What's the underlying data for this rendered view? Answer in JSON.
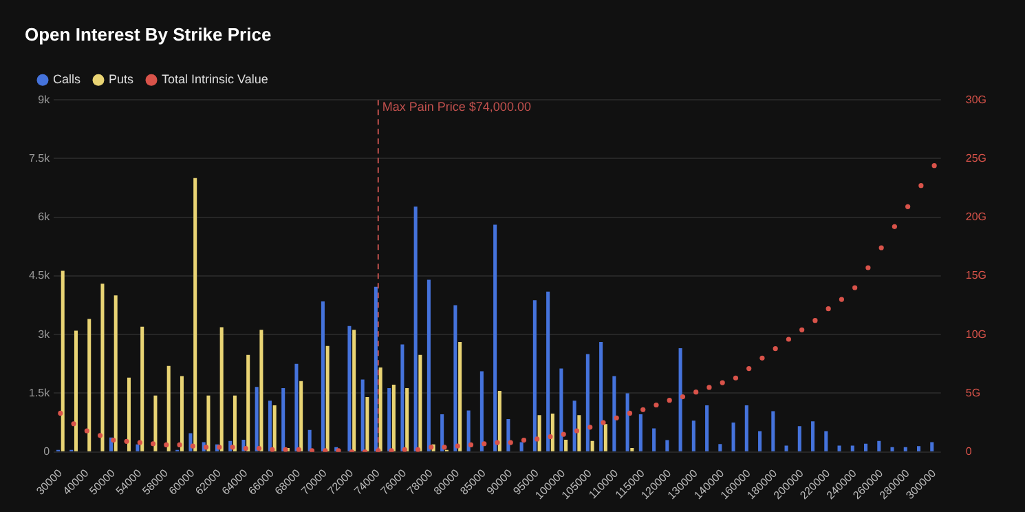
{
  "chart_data": {
    "type": "bar",
    "title": "Open Interest By Strike Price",
    "categories": [
      "30000",
      null,
      "40000",
      null,
      "50000",
      null,
      "54000",
      null,
      "58000",
      null,
      "60000",
      null,
      "62000",
      null,
      "64000",
      null,
      "66000",
      null,
      "68000",
      null,
      "70000",
      null,
      "72000",
      null,
      "74000",
      null,
      "76000",
      null,
      "78000",
      null,
      "80000",
      null,
      "85000",
      null,
      "90000",
      null,
      "95000",
      null,
      "100000",
      null,
      "105000",
      null,
      "110000",
      null,
      "115000",
      null,
      "120000",
      null,
      "130000",
      null,
      "140000",
      null,
      "160000",
      null,
      "180000",
      null,
      "200000",
      null,
      "220000",
      null,
      "240000",
      null,
      "260000",
      null,
      "280000",
      null,
      "300000"
    ],
    "series": [
      {
        "name": "Calls",
        "color": "#4573dc",
        "values": [
          50,
          50,
          0,
          null,
          370,
          0,
          190,
          null,
          0,
          50,
          480,
          250,
          190,
          280,
          310,
          1660,
          1310,
          1630,
          2250,
          560,
          3850,
          120,
          3220,
          1850,
          4220,
          1630,
          2750,
          6270,
          4400,
          960,
          3750,
          1060,
          2060,
          5810,
          840,
          250,
          3880,
          4100,
          2130,
          1310,
          2500,
          2810,
          1940,
          1500,
          960,
          600,
          300,
          2650,
          800,
          1190,
          200,
          750,
          1190,
          530,
          1040,
          160,
          660,
          780,
          530,
          160,
          160,
          210,
          280,
          120,
          120,
          150,
          250
        ]
      },
      {
        "name": "Puts",
        "color": "#e9d474",
        "values": [
          4630,
          3100,
          3400,
          4300,
          4000,
          1900,
          3200,
          1440,
          2200,
          1940,
          7000,
          1440,
          3190,
          1440,
          2480,
          3120,
          1190,
          100,
          1810,
          null,
          2710,
          0,
          3120,
          1400,
          2160,
          1720,
          1630,
          2480,
          190,
          50,
          2810,
          0,
          0,
          1560,
          0,
          0,
          940,
          980,
          310,
          940,
          280,
          710,
          null,
          100,
          0,
          0,
          0,
          0,
          0,
          0,
          0,
          0,
          0,
          0,
          0,
          0,
          0,
          0,
          0,
          0,
          0,
          0,
          0,
          0,
          0,
          0,
          0
        ]
      },
      {
        "name": "Total Intrinsic Value",
        "type": "scatter",
        "axis": "y2",
        "marker": "circle",
        "color": "#d9534a",
        "values": [
          3.3,
          2.4,
          1.8,
          1.4,
          1.0,
          0.9,
          0.8,
          0.7,
          0.6,
          0.6,
          0.5,
          0.4,
          0.4,
          0.4,
          0.3,
          0.3,
          0.2,
          0.2,
          0.2,
          0.1,
          0.1,
          0.1,
          0.0,
          0.0,
          0.1,
          0.1,
          0.2,
          0.2,
          0.4,
          0.4,
          0.5,
          0.6,
          0.7,
          0.8,
          0.8,
          1.0,
          1.1,
          1.3,
          1.5,
          1.8,
          2.1,
          2.5,
          2.9,
          3.3,
          3.6,
          4.0,
          4.4,
          4.7,
          5.1,
          5.5,
          5.9,
          6.3,
          7.1,
          8.0,
          8.8,
          9.6,
          10.4,
          11.2,
          12.2,
          13.0,
          14.0,
          15.7,
          17.4,
          19.2,
          20.9,
          22.7,
          24.4
        ]
      }
    ],
    "ylim": [
      0,
      9000
    ],
    "yticks": [
      0,
      {
        "value": 1500,
        "label": "1.5k"
      },
      {
        "value": 3000,
        "label": "3k"
      },
      {
        "value": 4500,
        "label": "4.5k"
      },
      {
        "value": 6000,
        "label": "6k"
      },
      {
        "value": 7500,
        "label": "7.5k"
      },
      {
        "value": 9000,
        "label": "9k"
      }
    ],
    "y2lim": [
      0,
      30
    ],
    "y2ticks": [
      0,
      {
        "value": 5,
        "label": "5G"
      },
      {
        "value": 10,
        "label": "10G"
      },
      {
        "value": 15,
        "label": "15G"
      },
      {
        "value": 20,
        "label": "20G"
      },
      {
        "value": 25,
        "label": "25G"
      },
      {
        "value": 30,
        "label": "30G"
      }
    ],
    "ref_lines": [
      {
        "axis": "x",
        "value": "74000",
        "label": "Max Pain Price $74,000.00",
        "color": "#c0504d",
        "line_style": "dashed"
      }
    ],
    "grid": "y",
    "legend": "top left"
  }
}
